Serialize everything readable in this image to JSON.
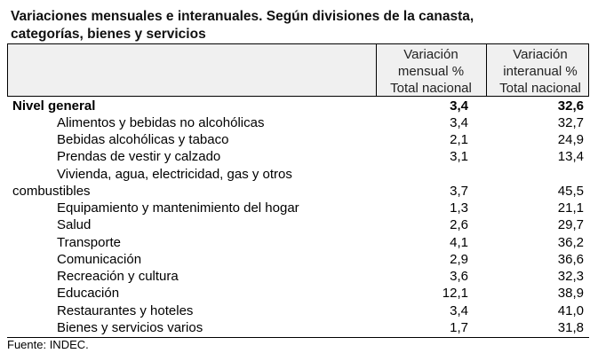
{
  "title_line1": "Variaciones mensuales e interanuales. Según divisiones de la canasta,",
  "title_line2": "categorías, bienes y servicios",
  "headers": {
    "col1": [
      "Variación",
      "mensual %",
      "Total nacional"
    ],
    "col2": [
      "Variación",
      "interanual %",
      "Total nacional"
    ]
  },
  "rows": [
    {
      "label": "Nivel general",
      "mensual": "3,4",
      "interanual": "32,6"
    },
    {
      "label": "Alimentos y bebidas no alcohólicas",
      "mensual": "3,4",
      "interanual": "32,7"
    },
    {
      "label": "Bebidas alcohólicas y tabaco",
      "mensual": "2,1",
      "interanual": "24,9"
    },
    {
      "label": "Prendas de vestir y calzado",
      "mensual": "3,1",
      "interanual": "13,4"
    },
    {
      "label": "Vivienda, agua, electricidad, gas y otros",
      "label2": "combustibles",
      "mensual": "3,7",
      "interanual": "45,5"
    },
    {
      "label": "Equipamiento y mantenimiento del hogar",
      "mensual": "1,3",
      "interanual": "21,1"
    },
    {
      "label": "Salud",
      "mensual": "2,6",
      "interanual": "29,7"
    },
    {
      "label": "Transporte",
      "mensual": "4,1",
      "interanual": "36,2"
    },
    {
      "label": "Comunicación",
      "mensual": "2,9",
      "interanual": "36,6"
    },
    {
      "label": "Recreación y cultura",
      "mensual": "3,6",
      "interanual": "32,3"
    },
    {
      "label": "Educación",
      "mensual": "12,1",
      "interanual": "38,9"
    },
    {
      "label": "Restaurantes y hoteles",
      "mensual": "3,4",
      "interanual": "41,0"
    },
    {
      "label": "Bienes y servicios varios",
      "mensual": "1,7",
      "interanual": "31,8"
    }
  ],
  "source": "Fuente: INDEC."
}
